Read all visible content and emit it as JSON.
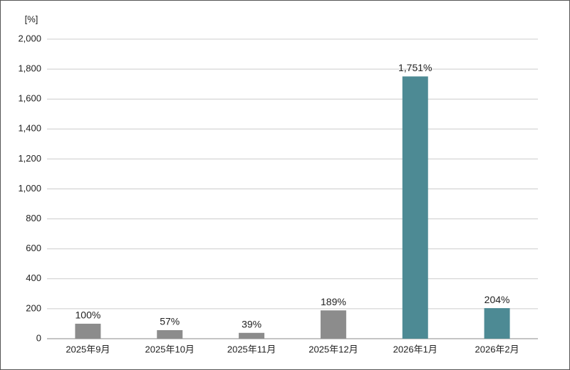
{
  "chart_data": {
    "type": "bar",
    "y_label": "[%]",
    "categories": [
      "2025年9月",
      "2025年10月",
      "2025年11月",
      "2025年12月",
      "2026年1月",
      "2026年2月"
    ],
    "values": [
      100,
      57,
      39,
      189,
      1751,
      204
    ],
    "value_labels": [
      "100%",
      "57%",
      "39%",
      "189%",
      "1,751%",
      "204%"
    ],
    "colors": [
      "#8c8c8c",
      "#8c8c8c",
      "#8c8c8c",
      "#8c8c8c",
      "#4d8a94",
      "#4d8a94"
    ],
    "ylim": [
      0,
      2000
    ],
    "yticks": [
      0,
      200,
      400,
      600,
      800,
      {
        "value": 1000,
        "label": "1,000"
      },
      {
        "value": 1200,
        "label": "1,200"
      },
      {
        "value": 1400,
        "label": "1,400"
      },
      {
        "value": 1600,
        "label": "1,600"
      },
      {
        "value": 1800,
        "label": "1,800"
      },
      {
        "value": 2000,
        "label": "2,000"
      }
    ],
    "grid": true
  }
}
